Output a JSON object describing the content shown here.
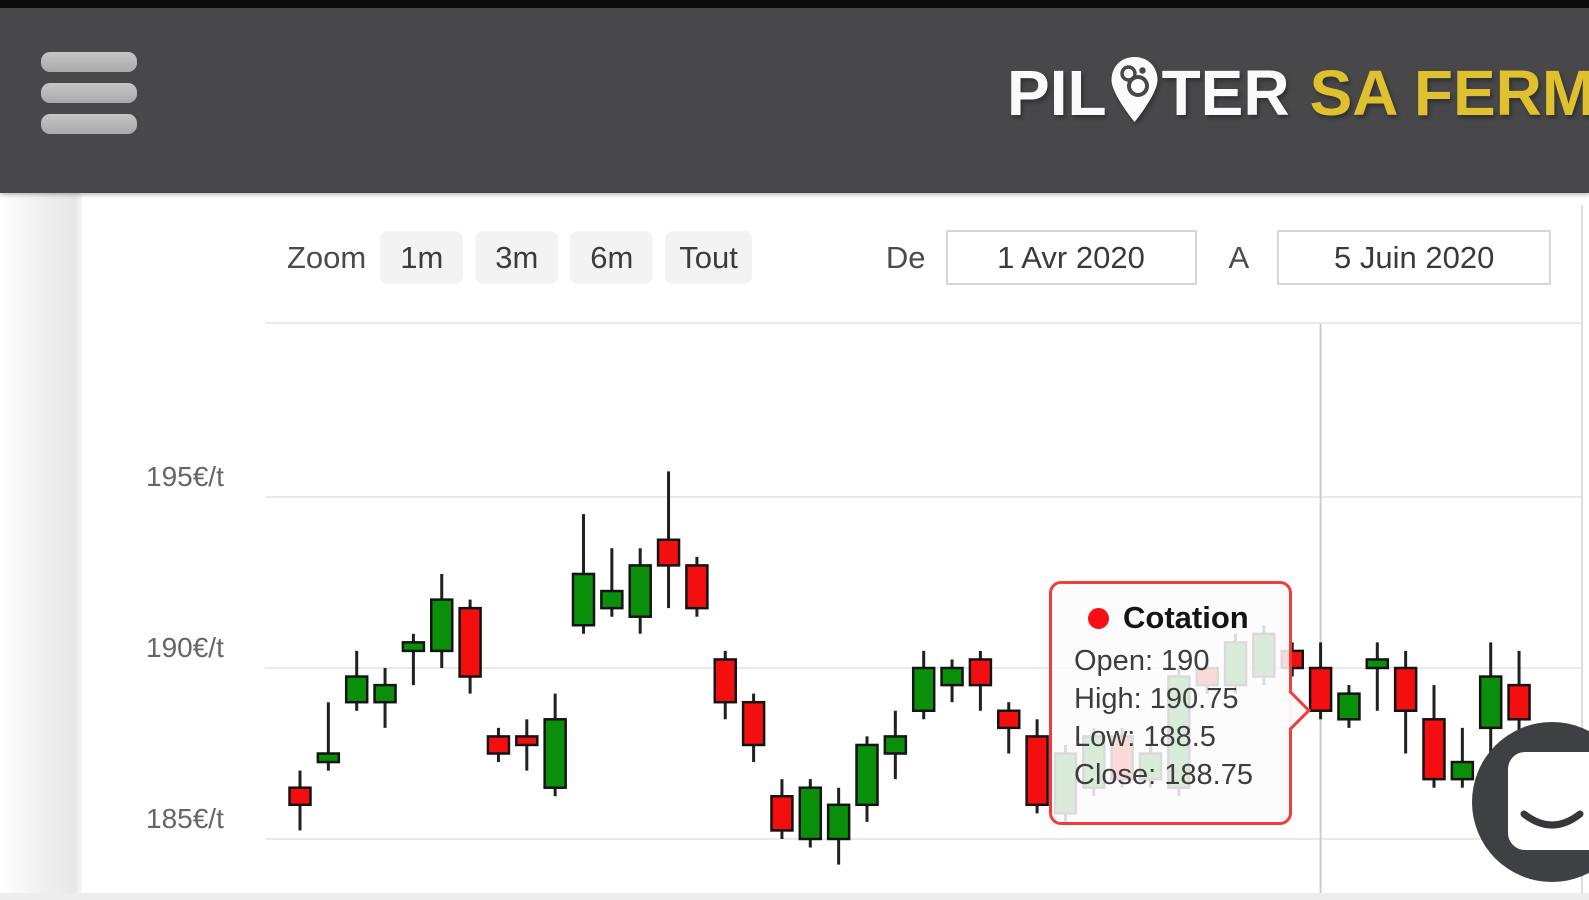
{
  "header": {
    "brand_part1": "PIL",
    "brand_part2": "TER",
    "brand_suffix": "SA FERME",
    "brand_color_primary": "#fafafa",
    "brand_color_accent": "#dfc02f",
    "background": "#48484a"
  },
  "toolbar": {
    "zoom_label": "Zoom",
    "zoom_buttons": [
      "1m",
      "3m",
      "6m",
      "Tout"
    ],
    "from_label": "De",
    "from_value": "1 Avr 2020",
    "to_label": "A",
    "to_value": "5 Juin 2020"
  },
  "tooltip": {
    "series_name": "Cotation",
    "rows": [
      "Open: 190",
      "High: 190.75",
      "Low: 188.5",
      "Close: 188.75"
    ],
    "border_color": "#f23c3c",
    "marker_color": "#fa0f17"
  },
  "chart_data": {
    "type": "candlestick",
    "title": "",
    "xlabel": "",
    "ylabel": "€/t",
    "y_ticks": [
      "195€/t",
      "190€/t",
      "185€/t"
    ],
    "y_tick_values": [
      195,
      190,
      185
    ],
    "ylim": [
      183.4,
      200.1
    ],
    "grid": true,
    "series_name": "Cotation",
    "hover_index": 36,
    "colors": {
      "up": "#0a8f0b",
      "down": "#f30f0f",
      "wick": "#202020",
      "body_stroke": "#141414",
      "grid": "#e9e9e9",
      "crosshair": "#cccccc"
    },
    "candles": [
      {
        "o": 186.5,
        "h": 187,
        "l": 185.25,
        "c": 186
      },
      {
        "o": 187.25,
        "h": 189,
        "l": 187,
        "c": 187.5
      },
      {
        "o": 189,
        "h": 190.5,
        "l": 188.75,
        "c": 189.75
      },
      {
        "o": 189,
        "h": 190,
        "l": 188.25,
        "c": 189.5
      },
      {
        "o": 190.5,
        "h": 191,
        "l": 189.5,
        "c": 190.75
      },
      {
        "o": 190.5,
        "h": 192.75,
        "l": 190,
        "c": 192
      },
      {
        "o": 191.75,
        "h": 192,
        "l": 189.25,
        "c": 189.75
      },
      {
        "o": 188,
        "h": 188.25,
        "l": 187.25,
        "c": 187.5
      },
      {
        "o": 188,
        "h": 188.5,
        "l": 187,
        "c": 187.75
      },
      {
        "o": 186.5,
        "h": 189.25,
        "l": 186.25,
        "c": 188.5
      },
      {
        "o": 191.25,
        "h": 194.5,
        "l": 191,
        "c": 192.75
      },
      {
        "o": 191.75,
        "h": 193.5,
        "l": 191.5,
        "c": 192.25
      },
      {
        "o": 191.5,
        "h": 193.5,
        "l": 191,
        "c": 193
      },
      {
        "o": 193.75,
        "h": 195.75,
        "l": 191.75,
        "c": 193
      },
      {
        "o": 193,
        "h": 193.25,
        "l": 191.5,
        "c": 191.75
      },
      {
        "o": 190.25,
        "h": 190.5,
        "l": 188.5,
        "c": 189
      },
      {
        "o": 189,
        "h": 189.25,
        "l": 187.25,
        "c": 187.75
      },
      {
        "o": 186.25,
        "h": 186.75,
        "l": 185,
        "c": 185.25
      },
      {
        "o": 185,
        "h": 186.75,
        "l": 184.75,
        "c": 186.5
      },
      {
        "o": 185,
        "h": 186.5,
        "l": 184.25,
        "c": 186
      },
      {
        "o": 186,
        "h": 188,
        "l": 185.5,
        "c": 187.75
      },
      {
        "o": 187.5,
        "h": 188.75,
        "l": 186.75,
        "c": 188
      },
      {
        "o": 188.75,
        "h": 190.5,
        "l": 188.5,
        "c": 190
      },
      {
        "o": 189.5,
        "h": 190.25,
        "l": 189,
        "c": 190
      },
      {
        "o": 190.25,
        "h": 190.5,
        "l": 188.75,
        "c": 189.5
      },
      {
        "o": 188.75,
        "h": 189,
        "l": 187.5,
        "c": 188.25
      },
      {
        "o": 188,
        "h": 188.5,
        "l": 185.75,
        "c": 186
      },
      {
        "o": 185.75,
        "h": 187.75,
        "l": 185.5,
        "c": 187.5
      },
      {
        "o": 186.5,
        "h": 188.25,
        "l": 186.25,
        "c": 188
      },
      {
        "o": 188,
        "h": 188.25,
        "l": 186.5,
        "c": 186.75
      },
      {
        "o": 186.75,
        "h": 187.75,
        "l": 186.5,
        "c": 187.5
      },
      {
        "o": 186.5,
        "h": 190,
        "l": 186.25,
        "c": 189.75
      },
      {
        "o": 190,
        "h": 190.25,
        "l": 189.25,
        "c": 189.5
      },
      {
        "o": 189.5,
        "h": 191,
        "l": 189.25,
        "c": 190.75
      },
      {
        "o": 189.75,
        "h": 191.25,
        "l": 189.5,
        "c": 191
      },
      {
        "o": 190.5,
        "h": 190.75,
        "l": 189.75,
        "c": 190
      },
      {
        "o": 190,
        "h": 190.75,
        "l": 188.5,
        "c": 188.75
      },
      {
        "o": 188.5,
        "h": 189.5,
        "l": 188.25,
        "c": 189.25
      },
      {
        "o": 190,
        "h": 190.75,
        "l": 188.75,
        "c": 190.25
      },
      {
        "o": 190,
        "h": 190.5,
        "l": 187.5,
        "c": 188.75
      },
      {
        "o": 188.5,
        "h": 189.5,
        "l": 186.5,
        "c": 186.75
      },
      {
        "o": 186.75,
        "h": 188.25,
        "l": 186.5,
        "c": 187.25
      },
      {
        "o": 188.25,
        "h": 190.75,
        "l": 187.5,
        "c": 189.75
      },
      {
        "o": 189.5,
        "h": 190.5,
        "l": 188,
        "c": 188.5
      }
    ]
  }
}
